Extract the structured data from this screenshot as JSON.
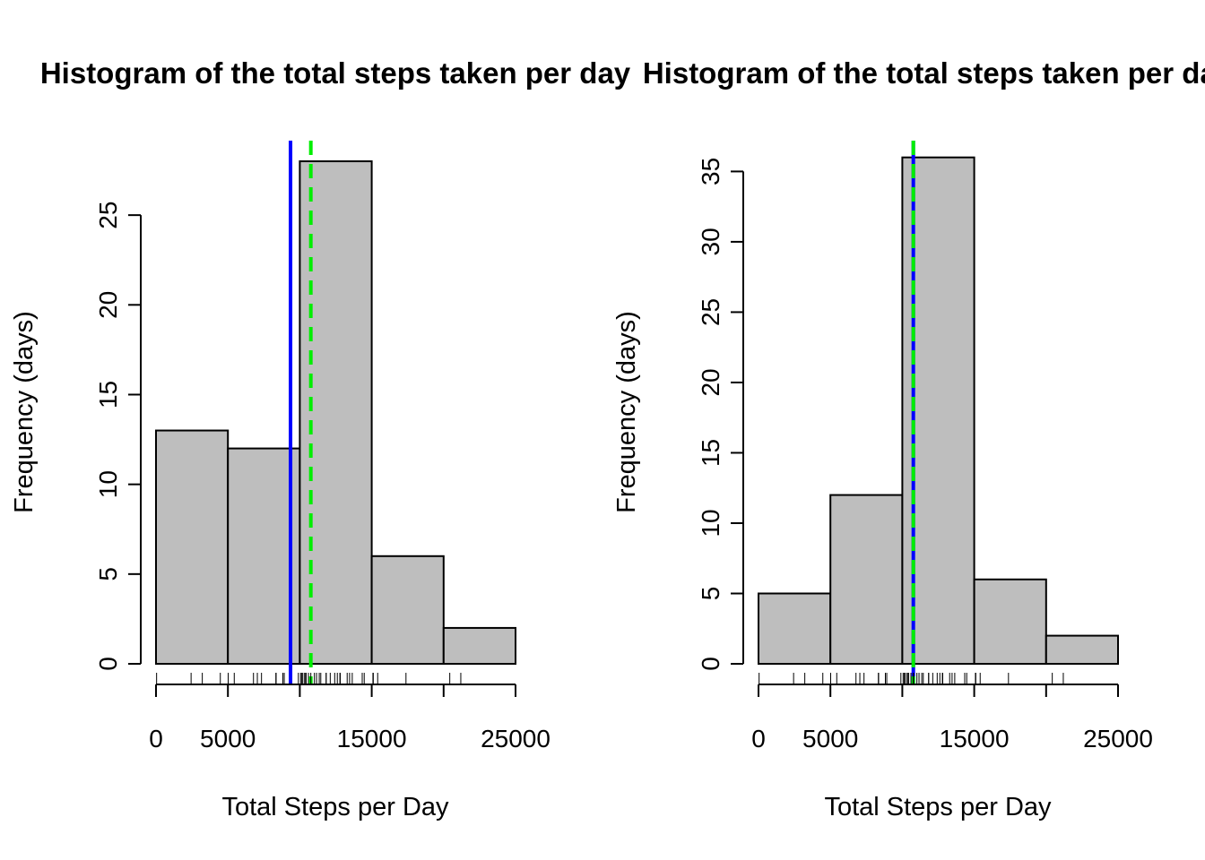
{
  "chart_data": [
    {
      "type": "bar",
      "title": "Histogram of the total steps taken per day",
      "xlabel": "Total Steps per Day",
      "ylabel": "Frequency (days)",
      "bins": [
        [
          0,
          5000
        ],
        [
          5000,
          10000
        ],
        [
          10000,
          15000
        ],
        [
          15000,
          20000
        ],
        [
          20000,
          25000
        ]
      ],
      "values": [
        13,
        12,
        28,
        6,
        2
      ],
      "xlim": [
        0,
        25000
      ],
      "ylim": [
        0,
        29
      ],
      "x_ticks": [
        0,
        5000,
        10000,
        15000,
        20000,
        25000
      ],
      "x_tick_labels": [
        "0",
        "5000",
        "",
        "15000",
        "",
        "25000"
      ],
      "y_ticks": [
        0,
        5,
        10,
        15,
        20,
        25
      ],
      "y_tick_labels": [
        "0",
        "5",
        "10",
        "15",
        "20",
        "25"
      ],
      "rug": [
        41,
        2440,
        3219,
        4472,
        5018,
        5441,
        6778,
        7047,
        7336,
        8334,
        8355,
        8821,
        8918,
        9900,
        10056,
        10139,
        10183,
        10304,
        10395,
        10439,
        10600,
        10765,
        11015,
        11162,
        11352,
        11458,
        11829,
        11834,
        12116,
        12426,
        12608,
        12787,
        12811,
        13294,
        13460,
        13646,
        14339,
        14478,
        15084,
        15110,
        15414,
        17382,
        20427,
        21194
      ],
      "vlines": [
        {
          "value": 9354,
          "color": "#0000ff",
          "style": "solid"
        },
        {
          "value": 10766,
          "color": "#00ee00",
          "style": "dashed"
        }
      ]
    },
    {
      "type": "bar",
      "title": "Histogram of the total steps taken per day",
      "xlabel": "Total Steps per Day",
      "ylabel": "Frequency (days)",
      "bins": [
        [
          0,
          5000
        ],
        [
          5000,
          10000
        ],
        [
          10000,
          15000
        ],
        [
          15000,
          20000
        ],
        [
          20000,
          25000
        ]
      ],
      "values": [
        5,
        12,
        36,
        6,
        2
      ],
      "xlim": [
        0,
        25000
      ],
      "ylim": [
        0,
        37
      ],
      "x_ticks": [
        0,
        5000,
        10000,
        15000,
        20000,
        25000
      ],
      "x_tick_labels": [
        "0",
        "5000",
        "",
        "15000",
        "",
        "25000"
      ],
      "y_ticks": [
        0,
        5,
        10,
        15,
        20,
        25,
        30,
        35
      ],
      "y_tick_labels": [
        "0",
        "5",
        "10",
        "15",
        "20",
        "25",
        "30",
        "35"
      ],
      "rug": [
        41,
        2440,
        3219,
        4472,
        5018,
        5441,
        6778,
        7047,
        7336,
        8334,
        8355,
        8821,
        8918,
        9900,
        10056,
        10139,
        10183,
        10304,
        10395,
        10439,
        10600,
        10766,
        10766,
        10766,
        10766,
        11015,
        11162,
        11352,
        11458,
        11829,
        11834,
        12116,
        12426,
        12608,
        12787,
        12811,
        13294,
        13460,
        13646,
        14339,
        14478,
        15084,
        15110,
        15414,
        17382,
        20427,
        21194
      ],
      "vlines": [
        {
          "value": 10766,
          "color": "#0000ff",
          "style": "solid"
        },
        {
          "value": 10766,
          "color": "#00ee00",
          "style": "dashed"
        }
      ]
    }
  ]
}
